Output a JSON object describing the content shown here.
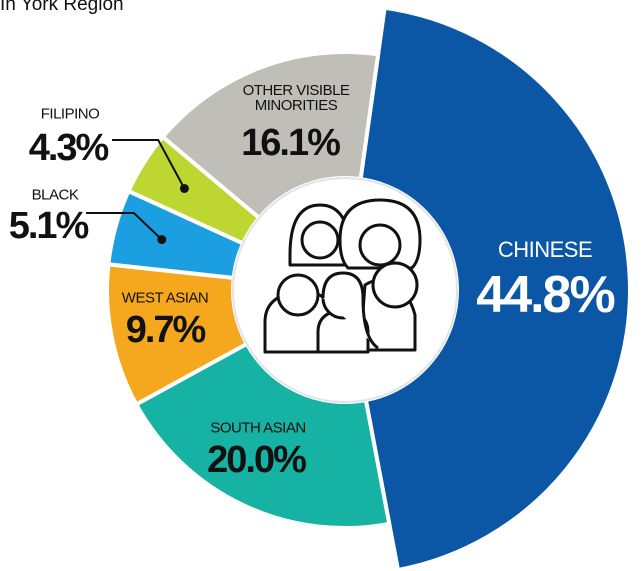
{
  "chart_data": {
    "type": "donut",
    "title": "In York Region",
    "categories": [
      "CHINESE",
      "SOUTH ASIAN",
      "WEST ASIAN",
      "BLACK",
      "FILIPINO",
      "OTHER VISIBLE MINORITIES"
    ],
    "values": [
      44.8,
      20.0,
      9.7,
      5.1,
      4.3,
      16.1
    ],
    "value_labels": [
      "44.8%",
      "20.0%",
      "9.7%",
      "5.1%",
      "4.3%",
      "16.1%"
    ],
    "colors": [
      "#0b57a6",
      "#16b2a4",
      "#f5a81d",
      "#1c9fe0",
      "#bdd632",
      "#bfbfb8"
    ]
  }
}
